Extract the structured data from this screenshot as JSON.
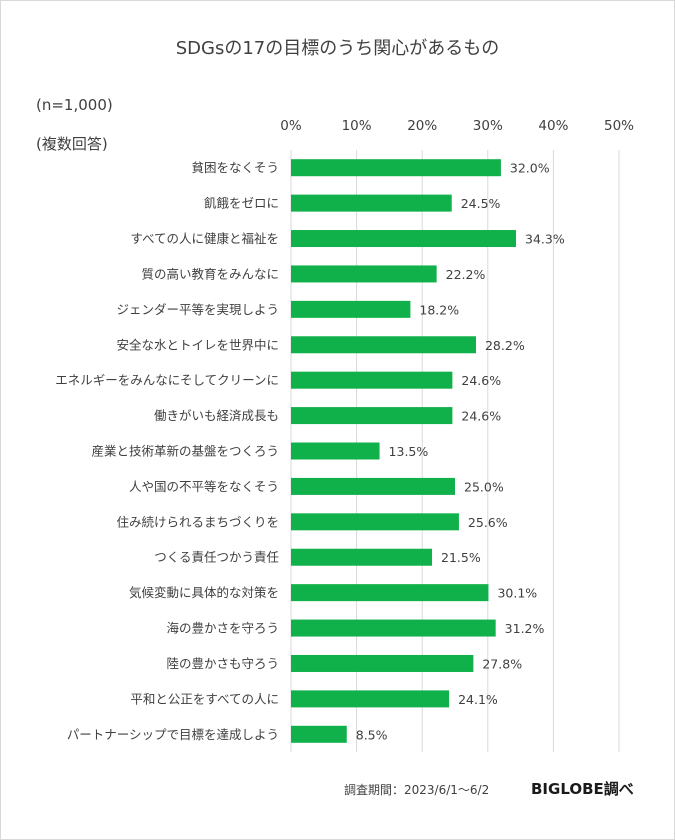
{
  "chart_data": {
    "type": "bar",
    "orientation": "horizontal",
    "title": "SDGsの17の目標のうち関心があるもの",
    "notes": [
      "(n=1,000)",
      "(複数回答)"
    ],
    "xlim": [
      0,
      50
    ],
    "ticks": [
      "0%",
      "10%",
      "20%",
      "30%",
      "40%",
      "50%"
    ],
    "grid": true,
    "bar_color": "#10b04a",
    "categories": [
      "貧困をなくそう",
      "飢餓をゼロに",
      "すべての人に健康と福祉を",
      "質の高い教育をみんなに",
      "ジェンダー平等を実現しよう",
      "安全な水とトイレを世界中に",
      "エネルギーをみんなにそしてクリーンに",
      "働きがいも経済成長も",
      "産業と技術革新の基盤をつくろう",
      "人や国の不平等をなくそう",
      "住み続けられるまちづくりを",
      "つくる責任つかう責任",
      "気候変動に具体的な対策を",
      "海の豊かさを守ろう",
      "陸の豊かさも守ろう",
      "平和と公正をすべての人に",
      "パートナーシップで目標を達成しよう"
    ],
    "values": [
      32.0,
      24.5,
      34.3,
      22.2,
      18.2,
      28.2,
      24.6,
      24.6,
      13.5,
      25.0,
      25.6,
      21.5,
      30.1,
      31.2,
      27.8,
      24.1,
      8.5
    ],
    "value_labels": [
      "32.0%",
      "24.5%",
      "34.3%",
      "22.2%",
      "18.2%",
      "28.2%",
      "24.6%",
      "24.6%",
      "13.5%",
      "25.0%",
      "25.6%",
      "21.5%",
      "30.1%",
      "31.2%",
      "27.8%",
      "24.1%",
      "8.5%"
    ]
  },
  "footer": {
    "source": "調査期間：2023/6/1～6/2",
    "brand": "BIGLOBE調べ"
  }
}
